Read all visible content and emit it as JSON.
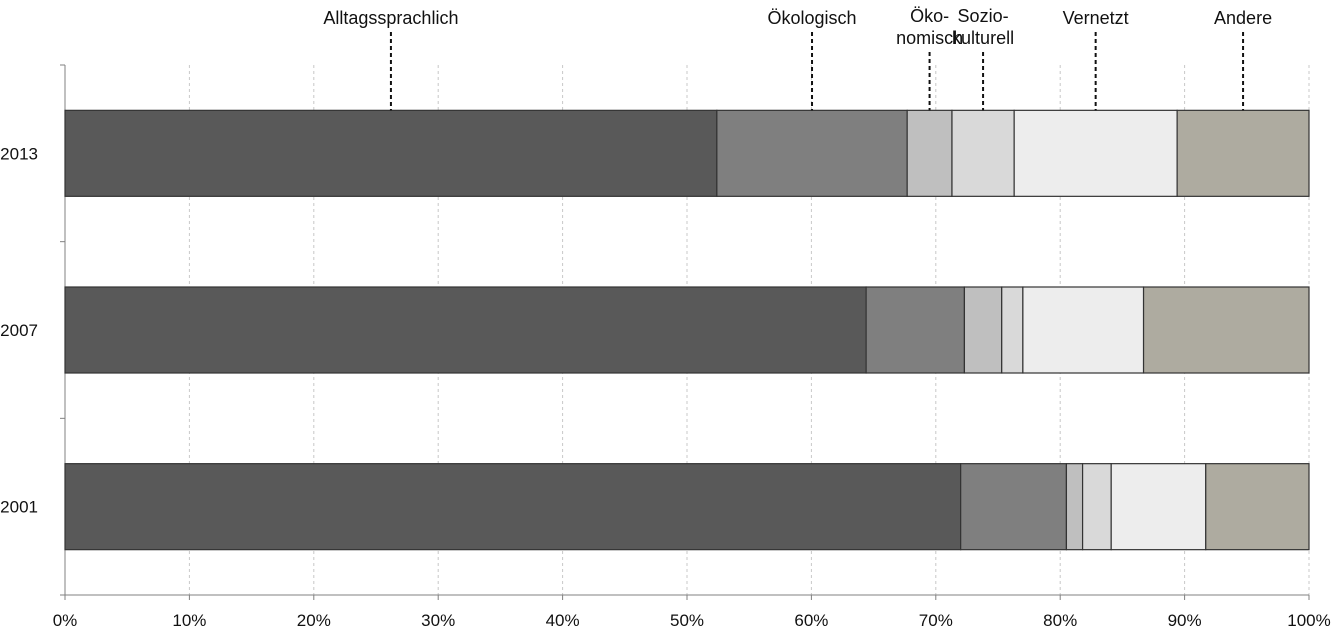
{
  "chart_data": {
    "type": "bar",
    "orientation": "horizontal",
    "stacked": "percent",
    "categories": [
      "2013",
      "2007",
      "2001"
    ],
    "series": [
      {
        "name": "Alltagssprachlich",
        "color": "#595959",
        "values": [
          52.4,
          64.4,
          72.0
        ]
      },
      {
        "name": "Ökologisch",
        "color": "#7f7f7f",
        "values": [
          15.3,
          7.9,
          8.5
        ]
      },
      {
        "name": "Öko-\nnomisch",
        "color": "#bfbfbf",
        "values": [
          3.6,
          3.0,
          1.3
        ]
      },
      {
        "name": "Sozio-\nkulturell",
        "color": "#d9d9d9",
        "values": [
          5.0,
          1.7,
          2.3
        ]
      },
      {
        "name": "Vernetzt",
        "color": "#ededed",
        "values": [
          13.1,
          9.7,
          7.6
        ]
      },
      {
        "name": "Andere",
        "color": "#aeaba0",
        "values": [
          10.6,
          13.3,
          8.3
        ]
      }
    ],
    "xlim": [
      0,
      100
    ],
    "xticks": [
      "0%",
      "10%",
      "20%",
      "30%",
      "40%",
      "50%",
      "60%",
      "70%",
      "80%",
      "90%",
      "100%"
    ],
    "grid": "vertical",
    "legend": "top labels with dashed leaders",
    "title": "",
    "xlabel": "",
    "ylabel": ""
  }
}
